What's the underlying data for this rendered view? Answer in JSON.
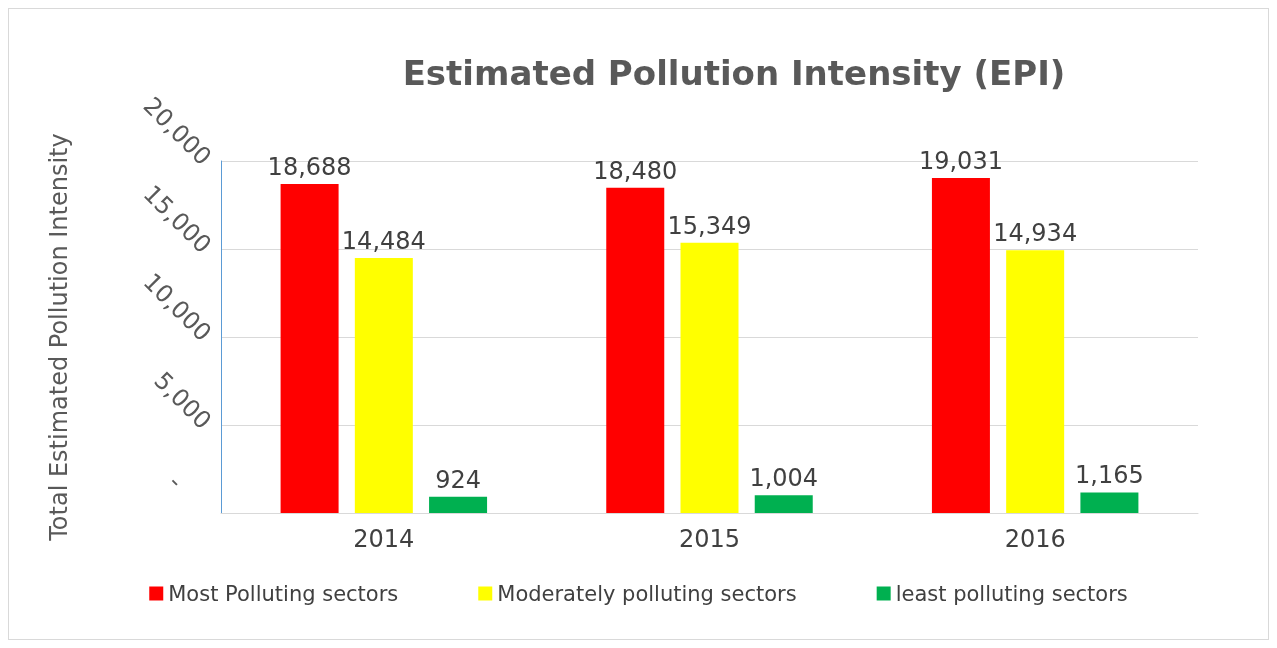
{
  "chart_data": {
    "type": "bar",
    "title": "Estimated Pollution Intensity (EPI)",
    "ylabel": "Total Estimated Pollution Intensity",
    "categories": [
      "2014",
      "2015",
      "2016"
    ],
    "series": [
      {
        "name": "Most Polluting sectors",
        "color": "#ff0000",
        "values": [
          18688,
          18480,
          19031
        ],
        "value_labels": [
          "18,688",
          "18,480",
          "19,031"
        ]
      },
      {
        "name": "Moderately polluting sectors",
        "color": "#ffff00",
        "values": [
          14484,
          15349,
          14934
        ],
        "value_labels": [
          "14,484",
          "15,349",
          "14,934"
        ]
      },
      {
        "name": "least polluting sectors",
        "color": "#00b050",
        "values": [
          924,
          1004,
          1165
        ],
        "value_labels": [
          "924",
          "1,004",
          "1,165"
        ]
      }
    ],
    "ylim": [
      0,
      20000
    ],
    "yticks": [
      {
        "value": 0,
        "label": "-"
      },
      {
        "value": 5000,
        "label": "5,000"
      },
      {
        "value": 10000,
        "label": "10,000"
      },
      {
        "value": 15000,
        "label": "15,000"
      },
      {
        "value": 20000,
        "label": "20,000"
      }
    ],
    "grid": "y",
    "legend": "bottom"
  }
}
